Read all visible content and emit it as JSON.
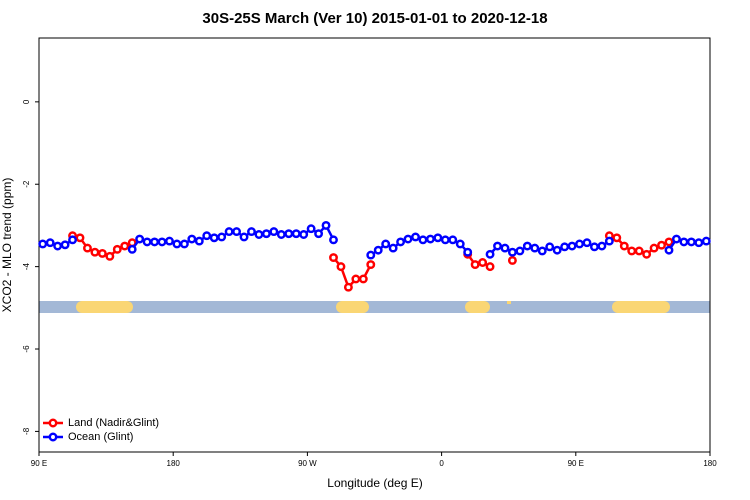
{
  "chart_data": {
    "type": "line",
    "title": "30S-25S March (Ver 10)   2015-01-01 to 2020-12-18",
    "x_label": "Longitude (deg E)",
    "y_label": "XCO2 - MLO trend (ppm)",
    "x": [
      92.5,
      97.5,
      102.5,
      107.5,
      112.5,
      117.5,
      122.5,
      127.5,
      132.5,
      137.5,
      142.5,
      147.5,
      152.5,
      157.5,
      162.5,
      167.5,
      172.5,
      177.5,
      182.5,
      187.5,
      192.5,
      197.5,
      202.5,
      207.5,
      212.5,
      217.5,
      222.5,
      227.5,
      232.5,
      237.5,
      242.5,
      247.5,
      252.5,
      257.5,
      262.5,
      267.5,
      272.5,
      277.5,
      282.5,
      287.5,
      292.5,
      297.5,
      302.5,
      307.5,
      312.5,
      317.5,
      322.5,
      327.5,
      332.5,
      337.5,
      342.5,
      347.5,
      352.5,
      357.5,
      362.5,
      367.5,
      372.5,
      377.5,
      382.5,
      387.5,
      392.5,
      397.5,
      402.5,
      407.5,
      412.5,
      417.5,
      422.5,
      427.5,
      432.5,
      437.5,
      442.5,
      447.5,
      452.5,
      457.5,
      462.5,
      467.5,
      472.5,
      477.5,
      482.5,
      487.5,
      492.5,
      497.5,
      502.5,
      507.5,
      512.5,
      517.5,
      522.5,
      527.5,
      532.5,
      537.5
    ],
    "series": [
      {
        "name": "Land (Nadir&Glint)",
        "color": "#ff0000",
        "values": [
          null,
          null,
          null,
          null,
          -3.25,
          -3.3,
          -3.55,
          -3.65,
          -3.68,
          -3.75,
          -3.58,
          -3.5,
          -3.42,
          null,
          null,
          null,
          null,
          null,
          null,
          null,
          null,
          null,
          null,
          null,
          null,
          null,
          null,
          null,
          null,
          null,
          null,
          null,
          null,
          null,
          null,
          null,
          null,
          null,
          null,
          -3.78,
          -4.0,
          -4.5,
          -4.3,
          -4.3,
          -3.95,
          null,
          null,
          null,
          null,
          null,
          null,
          null,
          null,
          null,
          null,
          null,
          null,
          -3.7,
          -3.95,
          -3.9,
          -4.0,
          null,
          null,
          -3.85,
          null,
          null,
          null,
          null,
          null,
          null,
          null,
          null,
          null,
          null,
          null,
          null,
          -3.25,
          -3.3,
          -3.5,
          -3.62,
          -3.62,
          -3.7,
          -3.55,
          -3.48,
          -3.4,
          null,
          null,
          null,
          null,
          null
        ]
      },
      {
        "name": "Ocean (Glint)",
        "color": "#0000ff",
        "values": [
          -3.45,
          -3.42,
          -3.5,
          -3.47,
          -3.35,
          null,
          null,
          null,
          null,
          null,
          null,
          null,
          -3.58,
          -3.33,
          -3.4,
          -3.4,
          -3.4,
          -3.38,
          -3.45,
          -3.45,
          -3.33,
          -3.38,
          -3.25,
          -3.3,
          -3.28,
          -3.15,
          -3.15,
          -3.28,
          -3.15,
          -3.22,
          -3.2,
          -3.15,
          -3.22,
          -3.2,
          -3.2,
          -3.22,
          -3.08,
          -3.2,
          -3.0,
          -3.35,
          null,
          null,
          null,
          null,
          -3.72,
          -3.6,
          -3.45,
          -3.55,
          -3.4,
          -3.33,
          -3.28,
          -3.35,
          -3.33,
          -3.3,
          -3.35,
          -3.35,
          -3.45,
          -3.65,
          null,
          null,
          -3.7,
          -3.5,
          -3.55,
          -3.65,
          -3.62,
          -3.5,
          -3.55,
          -3.62,
          -3.52,
          -3.6,
          -3.52,
          -3.5,
          -3.45,
          -3.42,
          -3.52,
          -3.5,
          -3.38,
          null,
          null,
          null,
          null,
          null,
          null,
          null,
          -3.6,
          -3.33,
          -3.4,
          -3.4,
          -3.42,
          -3.38
        ]
      }
    ],
    "xlim": [
      90,
      540
    ],
    "ylim": [
      -8.5,
      1.55
    ],
    "xticks": [
      {
        "value": 90,
        "label": "90 E"
      },
      180,
      {
        "value": 270,
        "label": "90 W"
      },
      {
        "value": 360,
        "label": "0"
      },
      {
        "value": 450,
        "label": "90 E"
      },
      {
        "value": 540,
        "label": "180"
      }
    ],
    "yticks": [
      -8,
      -6,
      -4,
      -2,
      0
    ],
    "legend": "bottom-left"
  }
}
